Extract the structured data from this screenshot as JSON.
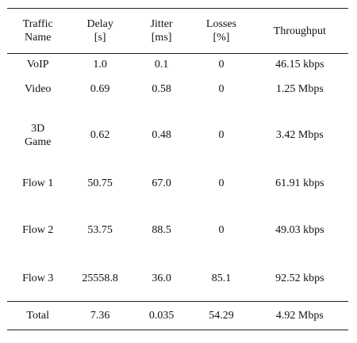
{
  "table": {
    "headers": [
      {
        "line1": "Traffic",
        "line2": "Name"
      },
      {
        "line1": "Delay",
        "line2": "[s]"
      },
      {
        "line1": "Jitter",
        "line2": "[ms]"
      },
      {
        "line1": "Losses",
        "line2": "[%]"
      },
      {
        "line1": "Throughput",
        "line2": ""
      }
    ],
    "rows": [
      {
        "name_line1": "VoIP",
        "name_line2": "",
        "delay": "1.0",
        "jitter": "0.1",
        "losses": "0",
        "throughput": "46.15 kbps"
      },
      {
        "name_line1": "Video",
        "name_line2": "",
        "delay": "0.69",
        "jitter": "0.58",
        "losses": "0",
        "throughput": "1.25 Mbps"
      },
      {
        "name_line1": "3D",
        "name_line2": "Game",
        "delay": "0.62",
        "jitter": "0.48",
        "losses": "0",
        "throughput": "3.42 Mbps"
      },
      {
        "name_line1": "Flow 1",
        "name_line2": "",
        "delay": "50.75",
        "jitter": "67.0",
        "losses": "0",
        "throughput": "61.91 kbps"
      },
      {
        "name_line1": "Flow 2",
        "name_line2": "",
        "delay": "53.75",
        "jitter": "88.5",
        "losses": "0",
        "throughput": "49.03 kbps"
      },
      {
        "name_line1": "Flow 3",
        "name_line2": "",
        "delay": "25558.8",
        "jitter": "36.0",
        "losses": "85.1",
        "throughput": "92.52 kbps"
      }
    ],
    "total": {
      "name": "Total",
      "delay": "7.36",
      "jitter": "0.035",
      "losses": "54.29",
      "throughput": "4.92 Mbps"
    }
  }
}
